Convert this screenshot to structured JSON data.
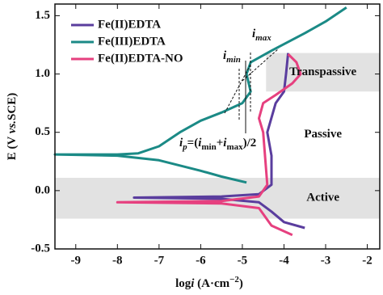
{
  "chart_data": {
    "type": "line",
    "x_label_parts": [
      "log",
      "i",
      " (A·cm",
      "−2",
      ")"
    ],
    "y_label_parts": [
      "E (V ",
      "vs.",
      "SCE)"
    ],
    "xlim": [
      -9.5,
      -1.7
    ],
    "ylim": [
      -0.5,
      1.6
    ],
    "xticks": [
      -9,
      -8,
      -7,
      -6,
      -5,
      -4,
      -3,
      -2
    ],
    "yticks": [
      -0.5,
      {
        "value": 0,
        "label": "0.0"
      },
      0.5,
      {
        "value": 1,
        "label": "1.0"
      },
      1.5
    ],
    "legend": "upper left",
    "regions": [
      {
        "label": "Transpassive",
        "xlim": [
          -4.43,
          -1.7
        ],
        "ylim": [
          0.85,
          1.18
        ],
        "color": "#e2e2e2"
      },
      {
        "label": "Active",
        "xlim": [
          -9.5,
          -1.7
        ],
        "ylim": [
          -0.24,
          0.11
        ],
        "color": "#e2e2e2"
      }
    ],
    "passive_label": "Passive",
    "imin_parts": [
      "i",
      "min"
    ],
    "imax_parts": [
      "i",
      "max"
    ],
    "formula_parts": [
      "i",
      "p",
      "=(",
      "i",
      "min",
      "+",
      "i",
      "max",
      ")/2"
    ],
    "series": [
      {
        "name": "Fe(II)EDTA",
        "color": "#5a3d9e",
        "x": [
          -3.5,
          -4.0,
          -4.3,
          -4.6,
          -5.5,
          -7.6,
          -5.5,
          -4.6,
          -4.3,
          -4.3,
          -4.4,
          -4.2,
          -4.0,
          -3.95,
          -3.9
        ],
        "values": [
          -0.32,
          -0.27,
          -0.18,
          -0.1,
          -0.07,
          -0.06,
          -0.05,
          -0.03,
          0.05,
          0.3,
          0.5,
          0.75,
          0.85,
          1.0,
          1.18
        ]
      },
      {
        "name": "Fe(III)EDTA",
        "color": "#1b8a86",
        "x": [
          -4.9,
          -5.5,
          -6,
          -7,
          -8,
          -9.5,
          -8,
          -7.5,
          -7,
          -6.5,
          -6,
          -5.5,
          -5,
          -4.8,
          -4.9,
          -4.8,
          -4.3,
          -3.5,
          -3,
          -2.5
        ],
        "values": [
          0.07,
          0.12,
          0.17,
          0.26,
          0.3,
          0.31,
          0.31,
          0.32,
          0.38,
          0.5,
          0.6,
          0.67,
          0.75,
          0.85,
          1.0,
          1.1,
          1.2,
          1.35,
          1.45,
          1.57
        ]
      },
      {
        "name": "Fe(II)EDTA-NO",
        "color": "#e6407f",
        "x": [
          -3.8,
          -4.3,
          -4.6,
          -5.5,
          -8,
          -5.5,
          -4.6,
          -4.4,
          -4.5,
          -4.6,
          -4.5,
          -4.2,
          -3.8,
          -3.6,
          -3.7,
          -3.9
        ],
        "values": [
          -0.38,
          -0.3,
          -0.15,
          -0.11,
          -0.1,
          -0.09,
          -0.05,
          0.05,
          0.5,
          0.62,
          0.75,
          0.82,
          0.92,
          1.0,
          1.1,
          1.17
        ]
      }
    ]
  }
}
